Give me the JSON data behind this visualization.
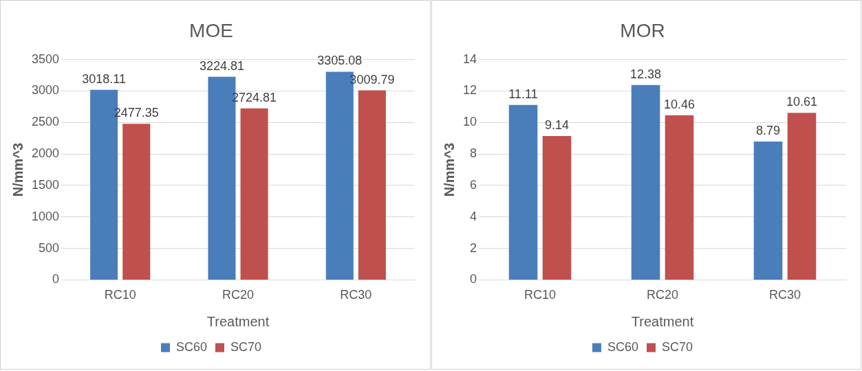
{
  "chart_data": [
    {
      "type": "bar",
      "title": "MOE",
      "xlabel": "Treatment",
      "ylabel": "N/mm^3",
      "categories": [
        "RC10",
        "RC20",
        "RC30"
      ],
      "series": [
        {
          "name": "SC60",
          "color": "#4a7ebb",
          "values": [
            3018.11,
            3224.81,
            3305.08
          ]
        },
        {
          "name": "SC70",
          "color": "#c0504d",
          "values": [
            2477.35,
            2724.81,
            3009.79
          ]
        }
      ],
      "ylim": [
        0,
        3500
      ],
      "yticks": [
        0,
        500,
        1000,
        1500,
        2000,
        2500,
        3000,
        3500
      ],
      "grid": "y",
      "legend": "bottom",
      "data_labels": true
    },
    {
      "type": "bar",
      "title": "MOR",
      "xlabel": "Treatment",
      "ylabel": "N/mm^3",
      "categories": [
        "RC10",
        "RC20",
        "RC30"
      ],
      "series": [
        {
          "name": "SC60",
          "color": "#4a7ebb",
          "values": [
            11.11,
            12.38,
            8.79
          ]
        },
        {
          "name": "SC70",
          "color": "#c0504d",
          "values": [
            9.14,
            10.46,
            10.61
          ]
        }
      ],
      "ylim": [
        0,
        14
      ],
      "yticks": [
        0,
        2,
        4,
        6,
        8,
        10,
        12,
        14
      ],
      "grid": "y",
      "legend": "bottom",
      "data_labels": true
    }
  ]
}
